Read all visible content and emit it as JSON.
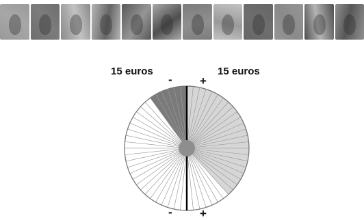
{
  "photo_strip": {
    "photos": [
      "photo-1",
      "photo-2",
      "photo-3",
      "photo-4",
      "photo-5",
      "photo-6",
      "photo-7",
      "photo-8",
      "photo-9",
      "photo-10",
      "photo-11",
      "photo-12"
    ]
  },
  "labels": {
    "left_amount": "15 euros",
    "right_amount": "15 euros",
    "top_minus": "-",
    "top_plus": "+",
    "bottom_minus": "-",
    "bottom_plus": "+"
  },
  "wheel": {
    "total_slices_per_half": 30,
    "left_half": {
      "dark_slices": 6,
      "dark_color": "#7a7a7a",
      "empty_color": "#ffffff"
    },
    "right_half": {
      "filled_slices": 23,
      "fill_color": "#d6d6d6",
      "empty_color": "#ffffff"
    },
    "hub_color": "#8e8e8e",
    "divider_color": "#000000",
    "line_color": "#9a9a9a"
  }
}
